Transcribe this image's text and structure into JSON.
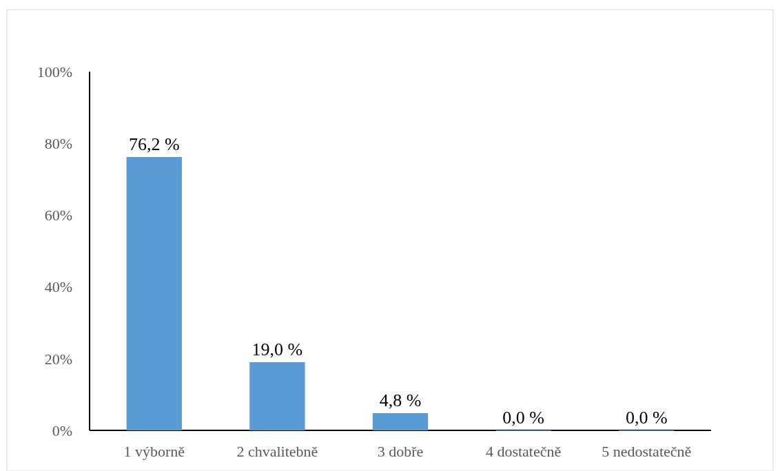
{
  "chart_data": {
    "type": "bar",
    "categories": [
      "1 výborně",
      "2 chvalitebně",
      "3 dobře",
      "4 dostatečně",
      "5 nedostatečně"
    ],
    "values": [
      76.2,
      19.0,
      4.8,
      0.0,
      0.0
    ],
    "value_labels": [
      "76,2 %",
      "19,0 %",
      "4,8 %",
      "0,0 %",
      "0,0 %"
    ],
    "color": "#5b9bd5",
    "ylim": [
      0,
      100
    ],
    "yticks": [
      {
        "value": 0,
        "label": "0%"
      },
      {
        "value": 20,
        "label": "20%"
      },
      {
        "value": 40,
        "label": "40%"
      },
      {
        "value": 60,
        "label": "60%"
      },
      {
        "value": 80,
        "label": "80%"
      },
      {
        "value": 100,
        "label": "100%"
      }
    ],
    "grid": false
  }
}
